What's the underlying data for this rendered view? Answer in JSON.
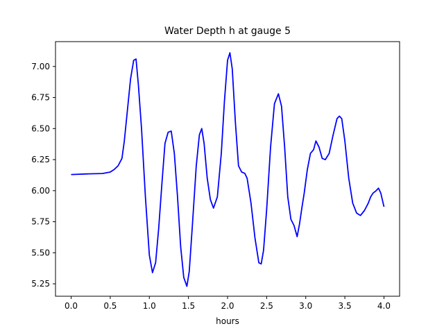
{
  "chart_data": {
    "type": "line",
    "title": "Water Depth h at gauge 5",
    "xlabel": "hours",
    "ylabel": "",
    "xlim": [
      -0.2,
      4.2
    ],
    "ylim": [
      5.15,
      7.2
    ],
    "xticks": [
      0.0,
      0.5,
      1.0,
      1.5,
      2.0,
      2.5,
      3.0,
      3.5,
      4.0
    ],
    "xtick_labels": [
      "0.0",
      "0.5",
      "1.0",
      "1.5",
      "2.0",
      "2.5",
      "3.0",
      "3.5",
      "4.0"
    ],
    "yticks": [
      5.25,
      5.5,
      5.75,
      6.0,
      6.25,
      6.5,
      6.75,
      7.0
    ],
    "ytick_labels": [
      "5.25",
      "5.50",
      "5.75",
      "6.00",
      "6.25",
      "6.50",
      "6.75",
      "7.00"
    ],
    "grid": false,
    "series": [
      {
        "color": "#0000ff",
        "x": [
          0.0,
          0.2,
          0.4,
          0.5,
          0.55,
          0.6,
          0.65,
          0.68,
          0.72,
          0.76,
          0.8,
          0.83,
          0.86,
          0.9,
          0.95,
          1.0,
          1.04,
          1.08,
          1.12,
          1.16,
          1.2,
          1.24,
          1.28,
          1.32,
          1.36,
          1.4,
          1.44,
          1.48,
          1.51,
          1.55,
          1.6,
          1.64,
          1.67,
          1.7,
          1.74,
          1.78,
          1.82,
          1.87,
          1.92,
          1.96,
          2.0,
          2.03,
          2.06,
          2.1,
          2.14,
          2.18,
          2.22,
          2.25,
          2.3,
          2.35,
          2.4,
          2.43,
          2.46,
          2.5,
          2.55,
          2.6,
          2.65,
          2.69,
          2.73,
          2.77,
          2.81,
          2.85,
          2.89,
          2.92,
          2.95,
          2.98,
          3.02,
          3.06,
          3.1,
          3.13,
          3.17,
          3.21,
          3.25,
          3.3,
          3.35,
          3.4,
          3.43,
          3.46,
          3.5,
          3.55,
          3.6,
          3.65,
          3.7,
          3.75,
          3.8,
          3.83,
          3.86,
          3.9,
          3.93,
          3.96,
          4.0
        ],
        "y": [
          6.13,
          6.135,
          6.138,
          6.15,
          6.17,
          6.2,
          6.26,
          6.4,
          6.65,
          6.9,
          7.05,
          7.06,
          6.85,
          6.5,
          5.95,
          5.48,
          5.34,
          5.42,
          5.7,
          6.05,
          6.38,
          6.47,
          6.48,
          6.3,
          5.95,
          5.55,
          5.3,
          5.23,
          5.35,
          5.72,
          6.2,
          6.45,
          6.5,
          6.38,
          6.1,
          5.93,
          5.86,
          5.95,
          6.3,
          6.72,
          7.05,
          7.11,
          6.98,
          6.55,
          6.2,
          6.15,
          6.14,
          6.1,
          5.9,
          5.62,
          5.42,
          5.41,
          5.52,
          5.85,
          6.35,
          6.7,
          6.78,
          6.68,
          6.35,
          5.95,
          5.77,
          5.72,
          5.63,
          5.73,
          5.86,
          5.98,
          6.17,
          6.3,
          6.33,
          6.4,
          6.35,
          6.26,
          6.25,
          6.3,
          6.45,
          6.58,
          6.6,
          6.58,
          6.4,
          6.1,
          5.9,
          5.82,
          5.8,
          5.84,
          5.9,
          5.95,
          5.98,
          6.0,
          6.02,
          5.98,
          5.87
        ]
      }
    ]
  }
}
